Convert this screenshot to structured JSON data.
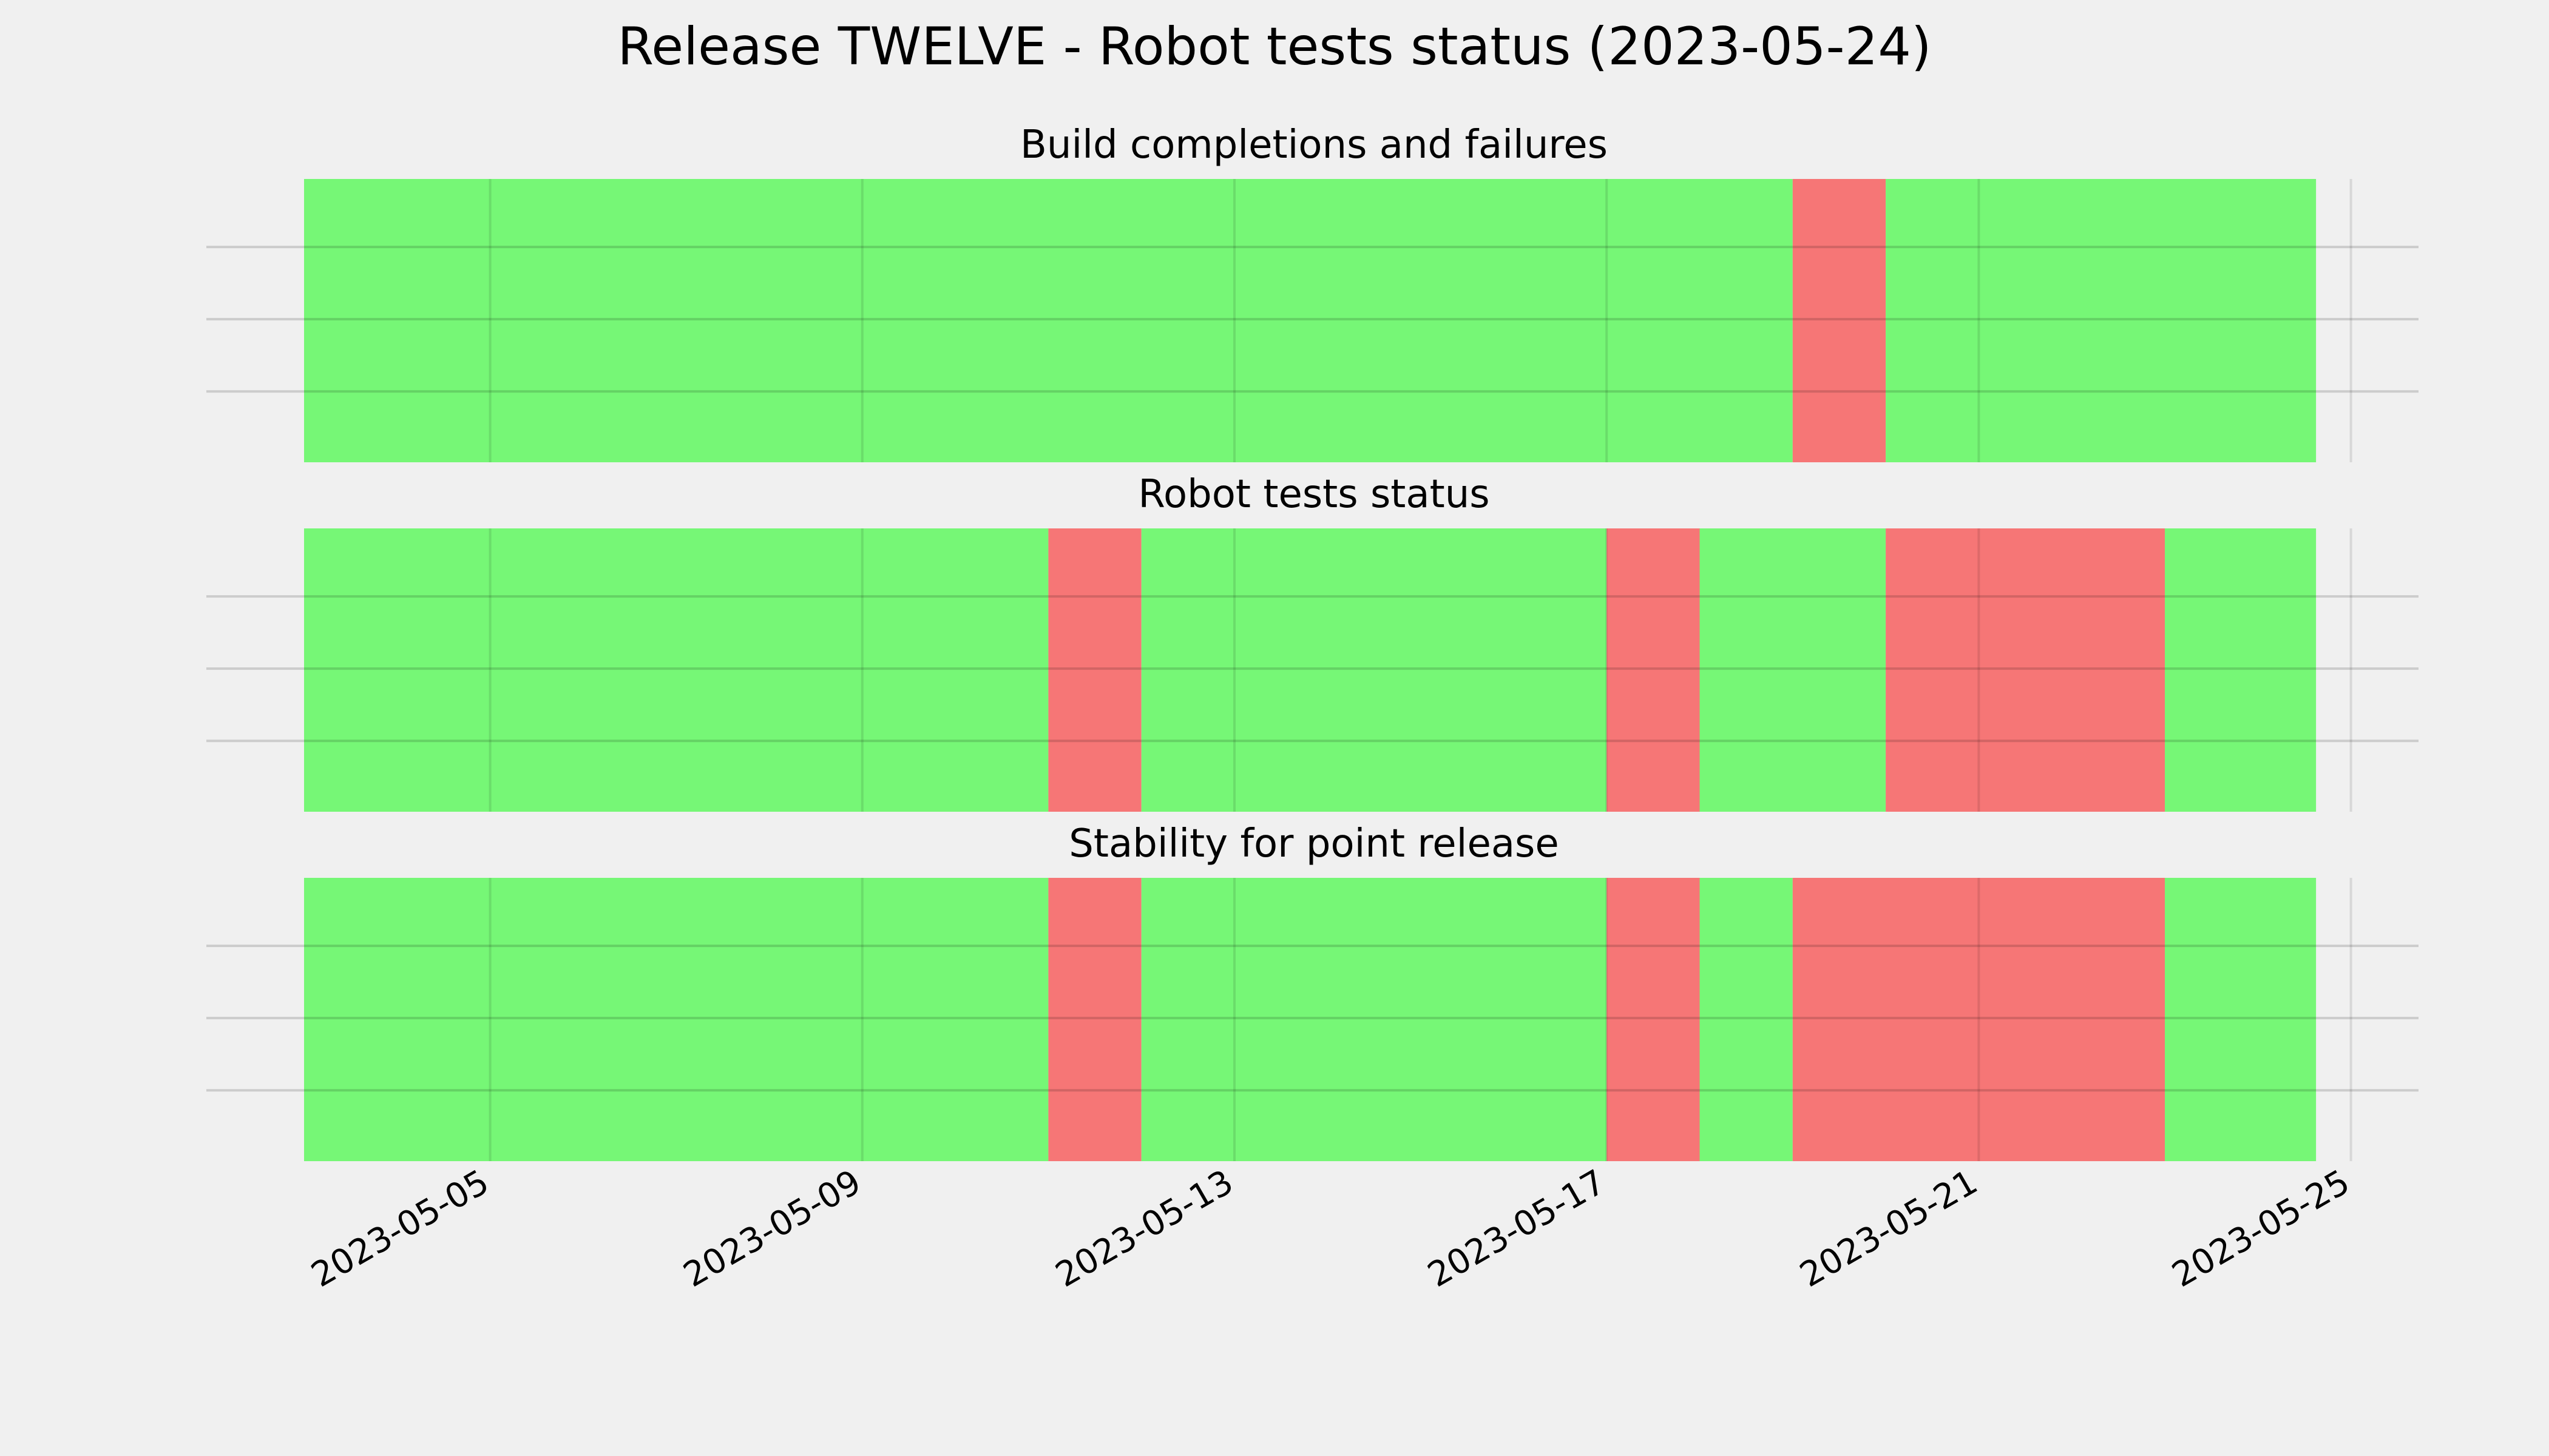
{
  "chart_data": {
    "type": "status-timeline",
    "title": "Release TWELVE - Robot tests status (2023-05-24)",
    "x_ticks": [
      "2023-05-05",
      "2023-05-09",
      "2023-05-13",
      "2023-05-17",
      "2023-05-21",
      "2023-05-25"
    ],
    "xlim": [
      "2023-05-03",
      "2023-05-25"
    ],
    "grid": true,
    "colors": {
      "pass": "#76f776",
      "fail": "#f67676",
      "background": "#f0f0f0",
      "grid": "#cbcbcb"
    },
    "panels": [
      {
        "title": "Build completions and failures",
        "segments": [
          {
            "start": "2023-05-03",
            "end": "2023-05-19",
            "status": "pass"
          },
          {
            "start": "2023-05-19",
            "end": "2023-05-20",
            "status": "fail"
          },
          {
            "start": "2023-05-20",
            "end": "2023-05-24 15:00",
            "status": "pass"
          }
        ]
      },
      {
        "title": "Robot tests status",
        "segments": [
          {
            "start": "2023-05-03",
            "end": "2023-05-11",
            "status": "pass"
          },
          {
            "start": "2023-05-11",
            "end": "2023-05-12",
            "status": "fail"
          },
          {
            "start": "2023-05-12",
            "end": "2023-05-17",
            "status": "pass"
          },
          {
            "start": "2023-05-17",
            "end": "2023-05-18",
            "status": "fail"
          },
          {
            "start": "2023-05-18",
            "end": "2023-05-20",
            "status": "pass"
          },
          {
            "start": "2023-05-20",
            "end": "2023-05-23",
            "status": "fail"
          },
          {
            "start": "2023-05-23",
            "end": "2023-05-24 15:00",
            "status": "pass"
          }
        ]
      },
      {
        "title": "Stability for point release",
        "segments": [
          {
            "start": "2023-05-03",
            "end": "2023-05-11",
            "status": "pass"
          },
          {
            "start": "2023-05-11",
            "end": "2023-05-12",
            "status": "fail"
          },
          {
            "start": "2023-05-12",
            "end": "2023-05-17",
            "status": "pass"
          },
          {
            "start": "2023-05-17",
            "end": "2023-05-18",
            "status": "fail"
          },
          {
            "start": "2023-05-18",
            "end": "2023-05-19",
            "status": "pass"
          },
          {
            "start": "2023-05-19",
            "end": "2023-05-23",
            "status": "fail"
          },
          {
            "start": "2023-05-23",
            "end": "2023-05-24 15:00",
            "status": "pass"
          }
        ]
      }
    ]
  }
}
